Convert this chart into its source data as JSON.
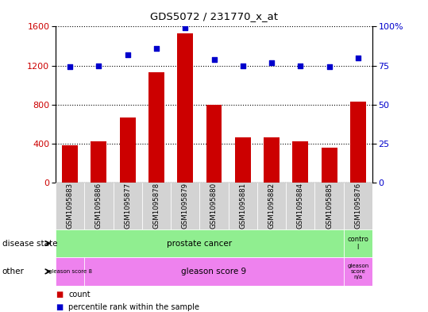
{
  "title": "GDS5072 / 231770_x_at",
  "samples": [
    "GSM1095883",
    "GSM1095886",
    "GSM1095877",
    "GSM1095878",
    "GSM1095879",
    "GSM1095880",
    "GSM1095881",
    "GSM1095882",
    "GSM1095884",
    "GSM1095885",
    "GSM1095876"
  ],
  "counts": [
    380,
    420,
    670,
    1130,
    1530,
    800,
    460,
    460,
    420,
    360,
    830
  ],
  "percentiles": [
    74,
    75,
    82,
    86,
    99,
    79,
    75,
    77,
    75,
    74,
    80
  ],
  "ylim_left": [
    0,
    1600
  ],
  "ylim_right": [
    0,
    100
  ],
  "yticks_left": [
    0,
    400,
    800,
    1200,
    1600
  ],
  "yticks_right": [
    0,
    25,
    50,
    75,
    100
  ],
  "bar_color": "#cc0000",
  "dot_color": "#0000cc",
  "background_color": "#ffffff",
  "tick_label_color_left": "#cc0000",
  "tick_label_color_right": "#0000cc",
  "disease_state_row_label": "disease state",
  "other_row_label": "other",
  "green_color": "#90ee90",
  "violet_color": "#ee82ee",
  "gray_color": "#d3d3d3",
  "legend_items": [
    {
      "color": "#cc0000",
      "label": "count"
    },
    {
      "color": "#0000cc",
      "label": "percentile rank within the sample"
    }
  ]
}
